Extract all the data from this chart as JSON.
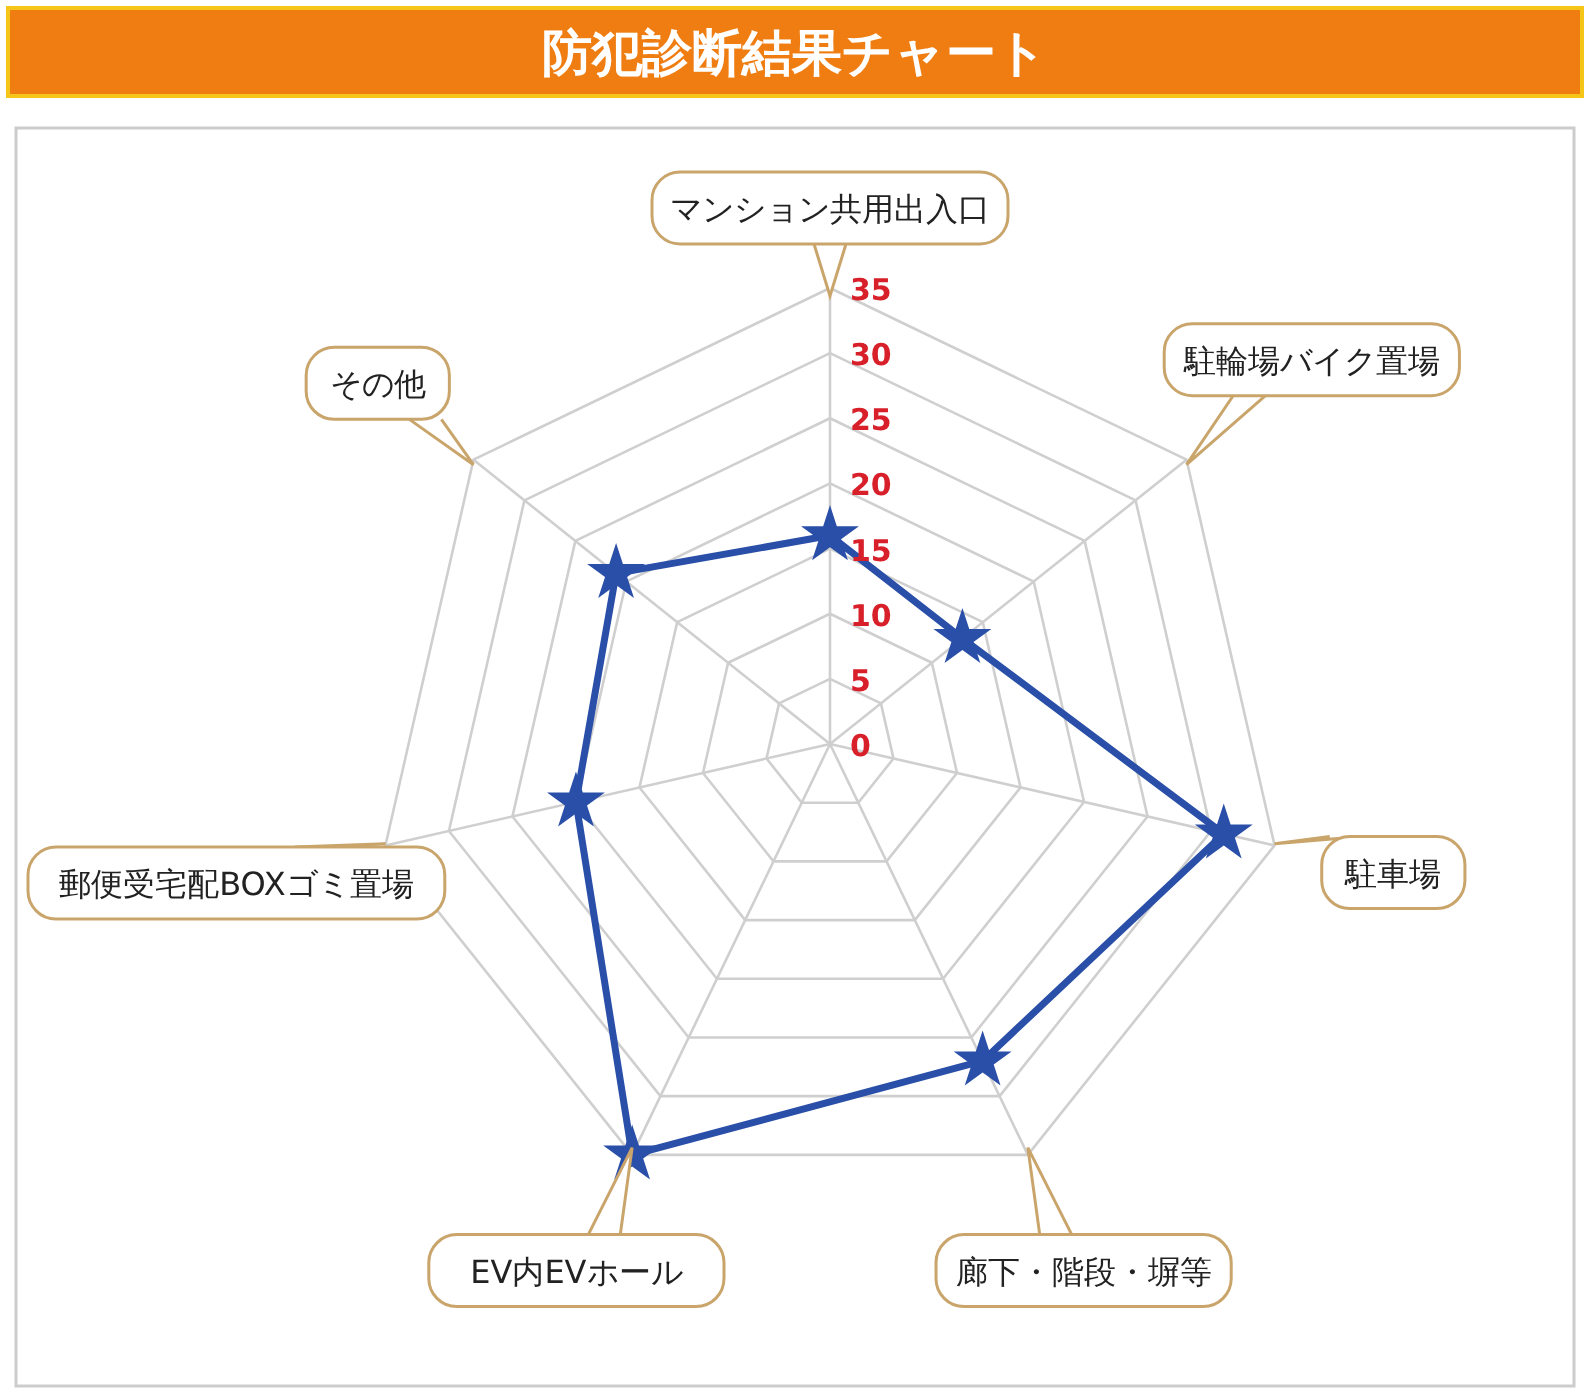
{
  "chart_data": {
    "type": "radar",
    "title": "防犯診断結果チャート",
    "categories": [
      "マンション共用出入口",
      "駐輪場バイク置場",
      "駐車場",
      "廊下・階段・塀等",
      "EV内EVホール",
      "郵便受宅配BOXゴミ置場",
      "その他"
    ],
    "series": [
      {
        "color": "#2a4fa8",
        "values": [
          16,
          13,
          31,
          27,
          35,
          20,
          21
        ]
      }
    ],
    "ylim": [
      0,
      35
    ],
    "yticks": [
      0,
      5,
      10,
      15,
      20,
      25,
      30,
      35
    ],
    "grid": true,
    "marker": "star",
    "line_style": "solid"
  }
}
